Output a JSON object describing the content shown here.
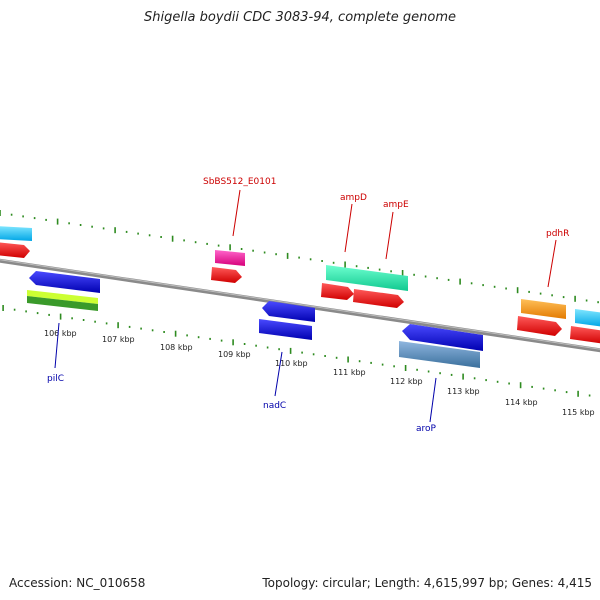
{
  "title": "Shigella boydii CDC 3083-94, complete genome",
  "footer": {
    "accession": "Accession: NC_010658",
    "summary": "Topology: circular; Length: 4,615,997 bp; Genes: 4,415"
  },
  "colors": {
    "backbone": "#888888",
    "tick": "#2e8b20",
    "label_top": "#cc0000",
    "label_bottom": "#0000aa"
  },
  "scale_labels": [
    "106 kbp",
    "107 kbp",
    "108 kbp",
    "109 kbp",
    "110 kbp",
    "111 kbp",
    "112 kbp",
    "113 kbp",
    "114 kbp",
    "115 kbp"
  ],
  "gene_labels": {
    "top": [
      "SbBS512_E0101",
      "ampD",
      "ampE",
      "pdhR"
    ],
    "bottom": [
      "pilC",
      "nadC",
      "aroP"
    ]
  }
}
